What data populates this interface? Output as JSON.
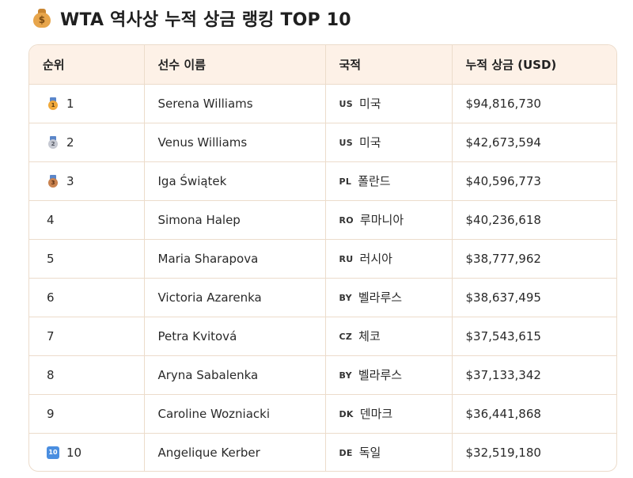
{
  "header": {
    "title": "WTA 역사상 누적 상금 랭킹 TOP 10",
    "icon": "money-bag-icon"
  },
  "table": {
    "columns": [
      "순위",
      "선수 이름",
      "국적",
      "누적 상금 (USD)"
    ],
    "rows": [
      {
        "rank": "1",
        "badge": "medal-1",
        "name": "Serena Williams",
        "flag": "US",
        "country": "미국",
        "prize": "$94,816,730"
      },
      {
        "rank": "2",
        "badge": "medal-2",
        "name": "Venus Williams",
        "flag": "US",
        "country": "미국",
        "prize": "$42,673,594"
      },
      {
        "rank": "3",
        "badge": "medal-3",
        "name": "Iga Świątek",
        "flag": "PL",
        "country": "폴란드",
        "prize": "$40,596,773"
      },
      {
        "rank": "4",
        "badge": "",
        "name": "Simona Halep",
        "flag": "RO",
        "country": "루마니아",
        "prize": "$40,236,618"
      },
      {
        "rank": "5",
        "badge": "",
        "name": "Maria Sharapova",
        "flag": "RU",
        "country": "러시아",
        "prize": "$38,777,962"
      },
      {
        "rank": "6",
        "badge": "",
        "name": "Victoria Azarenka",
        "flag": "BY",
        "country": "벨라루스",
        "prize": "$38,637,495"
      },
      {
        "rank": "7",
        "badge": "",
        "name": "Petra Kvitová",
        "flag": "CZ",
        "country": "체코",
        "prize": "$37,543,615"
      },
      {
        "rank": "8",
        "badge": "",
        "name": "Aryna Sabalenka",
        "flag": "BY",
        "country": "벨라루스",
        "prize": "$37,133,342"
      },
      {
        "rank": "9",
        "badge": "",
        "name": "Caroline Wozniacki",
        "flag": "DK",
        "country": "덴마크",
        "prize": "$36,441,868"
      },
      {
        "rank": "10",
        "badge": "keycap-10",
        "name": "Angelique Kerber",
        "flag": "DE",
        "country": "독일",
        "prize": "$32,519,180"
      }
    ]
  },
  "medal_labels": {
    "gold": "1",
    "silver": "2",
    "bronze": "3",
    "keycap": "10"
  },
  "colors": {
    "header_bg": "#fdf1e7",
    "border": "#ecdccb",
    "gold": "#f0a93a",
    "silver": "#c6c9d2",
    "bronze": "#c9824f",
    "keycap": "#4a8ee0"
  }
}
